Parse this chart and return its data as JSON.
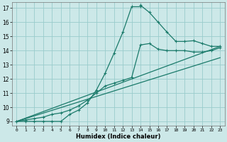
{
  "xlabel": "Humidex (Indice chaleur)",
  "bg_color": "#cce8e8",
  "grid_color": "#99cccc",
  "line_color": "#1a7a6a",
  "xlim": [
    -0.5,
    23.5
  ],
  "ylim": [
    8.7,
    17.4
  ],
  "xticks": [
    0,
    1,
    2,
    3,
    4,
    5,
    6,
    7,
    8,
    9,
    10,
    11,
    12,
    13,
    14,
    15,
    16,
    17,
    18,
    19,
    20,
    21,
    22,
    23
  ],
  "yticks": [
    9,
    10,
    11,
    12,
    13,
    14,
    15,
    16,
    17
  ],
  "series1_x": [
    0,
    1,
    2,
    3,
    4,
    5,
    6,
    7,
    8,
    9,
    10,
    11,
    12,
    13,
    14,
    14,
    15,
    16,
    17,
    18,
    19,
    20,
    21,
    22,
    23
  ],
  "series1_y": [
    9,
    9,
    9,
    9,
    9,
    9,
    9.5,
    9.8,
    10.3,
    11.2,
    12.4,
    13.8,
    15.3,
    17.1,
    17.1,
    17.2,
    16.7,
    16.0,
    15.3,
    14.65,
    14.65,
    14.7,
    14.5,
    14.3,
    14.3
  ],
  "series2_x": [
    0,
    1,
    2,
    3,
    4,
    5,
    6,
    7,
    8,
    9,
    10,
    11,
    12,
    13,
    14,
    15,
    16,
    17,
    18,
    19,
    20,
    21,
    22,
    23
  ],
  "series2_y": [
    9,
    9.1,
    9.2,
    9.3,
    9.5,
    9.6,
    9.8,
    10.1,
    10.5,
    11.0,
    11.5,
    11.7,
    11.9,
    12.1,
    14.4,
    14.5,
    14.1,
    14.0,
    14.0,
    14.0,
    13.9,
    13.9,
    14.0,
    14.2
  ],
  "series3_x": [
    0,
    23
  ],
  "series3_y": [
    9,
    14.3
  ],
  "series4_x": [
    0,
    23
  ],
  "series4_y": [
    9,
    13.5
  ]
}
